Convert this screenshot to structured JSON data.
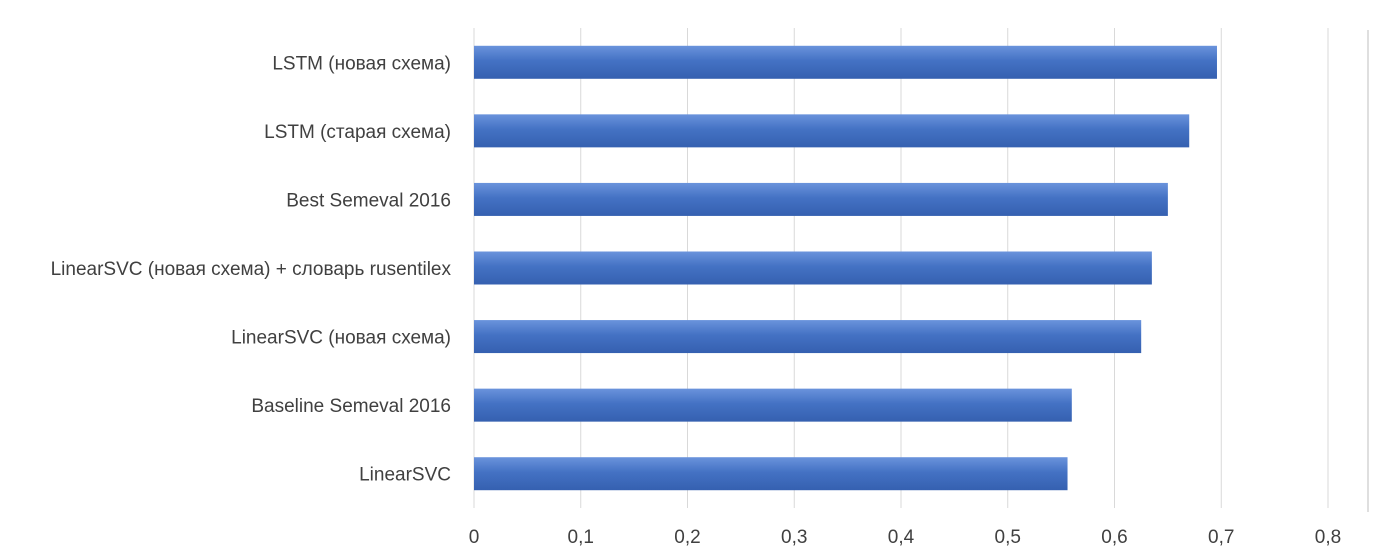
{
  "chart_data": {
    "type": "bar",
    "orientation": "horizontal",
    "categories": [
      "LSTM (новая схема)",
      "LSTM (старая схема)",
      "Best Semeval 2016",
      "LinearSVC (новая схема) + словарь rusentilex",
      "LinearSVC (новая схема)",
      "Baseline Semeval 2016",
      "LinearSVC"
    ],
    "values": [
      0.696,
      0.67,
      0.65,
      0.635,
      0.625,
      0.56,
      0.556
    ],
    "xlim": [
      0,
      0.8
    ],
    "x_ticks": [
      "0",
      "0,1",
      "0,2",
      "0,3",
      "0,4",
      "0,5",
      "0,6",
      "0,7",
      "0,8"
    ],
    "x_tick_values": [
      0,
      0.1,
      0.2,
      0.3,
      0.4,
      0.5,
      0.6,
      0.7,
      0.8
    ],
    "grid": true,
    "legend": "none",
    "bar_color": "#4472c4",
    "bar_gradient_light": "#6a93dc",
    "bar_gradient_dark": "#3560b0"
  }
}
